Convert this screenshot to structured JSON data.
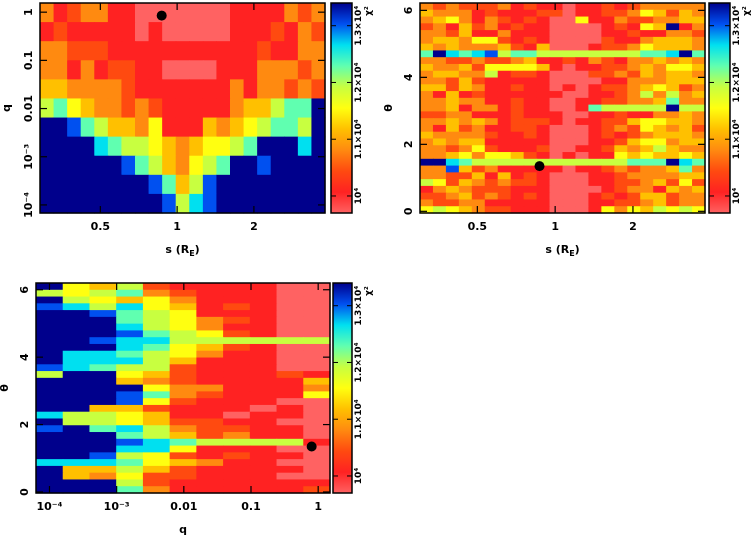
{
  "colormap": {
    "level_colors": [
      "#ff6262",
      "#ff2222",
      "#ff4a10",
      "#ff8a10",
      "#ffc000",
      "#ffff10",
      "#c8ff40",
      "#60ffb0",
      "#00e0f0",
      "#0050f0",
      "#00008c"
    ],
    "level_chi2": [
      9700,
      10070,
      10440,
      10810,
      11180,
      11550,
      11920,
      12290,
      12660,
      13030,
      13400
    ]
  },
  "colorbar": {
    "range": [
      9700,
      13400
    ],
    "ticks": [
      {
        "value": 10000,
        "label": "10⁴"
      },
      {
        "value": 11000,
        "label": "1.1×10⁴"
      },
      {
        "value": 12000,
        "label": "1.2×10⁴"
      },
      {
        "value": 13000,
        "label": "1.3×10⁴"
      }
    ],
    "label": "χ²"
  },
  "chart_data": [
    {
      "type": "heatmap",
      "id": "s-q",
      "xlabel": {
        "text": "s (R",
        "sub": "E",
        "close": ")"
      },
      "ylabel": "q",
      "xscale": "log",
      "yscale": "log",
      "xlim": [
        0.29,
        3.8
      ],
      "ylim": [
        6.8e-05,
        1.55
      ],
      "xticks": [
        {
          "value": 0.5,
          "label": "0.5"
        },
        {
          "value": 1,
          "label": "1"
        },
        {
          "value": 2,
          "label": "2"
        }
      ],
      "yticks": [
        {
          "value": 0.0001,
          "label": "10⁻⁴"
        },
        {
          "value": 0.001,
          "label": "10⁻³"
        },
        {
          "value": 0.01,
          "label": "0.01"
        },
        {
          "value": 0.1,
          "label": "0.1"
        },
        {
          "value": 1,
          "label": "1"
        }
      ],
      "best_fit": {
        "x": 0.87,
        "y": 0.85
      },
      "grid_rows_top_to_bottom": [
        "312331100000001111323",
        "121111101000001112132",
        "332221111111111121133",
        "331312211000011133323",
        "443333211111113133232",
        "67543323211111344677a",
        "aa976443511143456776a",
        "aaaa876654345567aaa8a",
        "aaaaaa97643567aa9aaaa",
        "aaaaaaaa97469aaaaaaaa",
        "aaaaaaaaa9689aaaaaaaa"
      ]
    },
    {
      "type": "heatmap",
      "id": "s-theta",
      "xlabel": {
        "text": "s (R",
        "sub": "E",
        "close": ")"
      },
      "ylabel": "θ",
      "xscale": "log",
      "yscale": "linear",
      "xlim": [
        0.3,
        3.8
      ],
      "ylim": [
        -0.05,
        6.22
      ],
      "xticks": [
        {
          "value": 0.5,
          "label": "0.5"
        },
        {
          "value": 1,
          "label": "1"
        },
        {
          "value": 2,
          "label": "2"
        }
      ],
      "yticks": [
        {
          "value": 0,
          "label": "0"
        },
        {
          "value": 2,
          "label": "2"
        },
        {
          "value": 4,
          "label": "4"
        },
        {
          "value": 6,
          "label": "6"
        }
      ],
      "best_fit": {
        "x": 0.87,
        "y": 1.35
      },
      "grid_rows_top_to_bottom": [
        "3232223121101121233333",
        "4333121112201122354243",
        "3453132121005113223344",
        "2314231211000012154a13",
        "3324113111000011211332",
        "3443552121000021134443",
        "4343334214000122354443",
        "7a878967766666666778a7",
        "3322322341121321334343",
        "4334255554101122343554",
        "3443361221000223243443",
        "3324211111000011333444",
        "4424311211010122345423",
        "3141211111100112363634",
        "3343311211001122334733",
        "3341331211001766666a66",
        "2233111211100112113343",
        "3343431222101122455443",
        "3142311221000123254342",
        "4333321121000121234443",
        "3434411111000112455344",
        "3323521112001124346433",
        "3345355421010115454454",
        "aa87666666666666777a87",
        "3394231111101123233473",
        "3322414121000112333344",
        "6524323221000112234252",
        "1343222111000012331434",
        "2234232121000121244233",
        "3223311111000112234233",
        "5654322111000153546565"
      ]
    },
    {
      "type": "heatmap",
      "id": "q-theta",
      "xlabel": {
        "text": "q",
        "sub": "",
        "close": ""
      },
      "ylabel": "θ",
      "xscale": "log",
      "yscale": "linear",
      "xlim": [
        6.3e-05,
        1.5
      ],
      "ylim": [
        -0.03,
        6.2
      ],
      "xticks": [
        {
          "value": 0.0001,
          "label": "10⁻⁴"
        },
        {
          "value": 0.001,
          "label": "10⁻³"
        },
        {
          "value": 0.01,
          "label": "0.01"
        },
        {
          "value": 0.1,
          "label": "0.1"
        },
        {
          "value": 1,
          "label": "1"
        }
      ],
      "yticks": [
        {
          "value": 0,
          "label": "0"
        },
        {
          "value": 2,
          "label": "2"
        },
        {
          "value": 4,
          "label": "4"
        },
        {
          "value": 6,
          "label": "6"
        }
      ],
      "best_fit": {
        "x": 0.8,
        "y": 1.35
      },
      "grid_rows_top_to_bottom": [
        "a5462111100",
        "65673211100",
        "a6545311100",
        "98685412100",
        "aa976511100",
        "aaa76532100",
        "aaa86531100",
        "aaa97652100",
        "aa988666666",
        "aaa87542100",
        "a8876531100",
        "a8886411100",
        "98766211100",
        "6aa54211121",
        "aaa43211114",
        "aaaa5331113",
        "aaa97321115",
        "aaa95211100",
        "aa442111010",
        "86654110110",
        "a6654221100",
        "9a786322110",
        "aaa76423110",
        "aaa98766661",
        "aaa88511100",
        "aa965212110",
        "88875431100",
        "a4464211110",
        "a4352211100",
        "aaa62111111",
        "aaa73111112"
      ]
    }
  ]
}
